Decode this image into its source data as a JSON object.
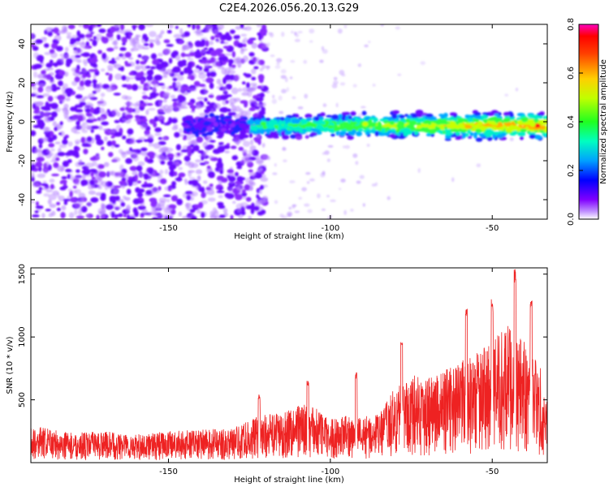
{
  "chart_data": [
    {
      "type": "heatmap",
      "title": "C2E4.2026.056.20.13.G29",
      "xlabel": "Height of straight line (km)",
      "ylabel": "Frequency (Hz)",
      "xlim": [
        -192.5,
        -33
      ],
      "ylim": [
        -50,
        50
      ],
      "x_ticks": [
        -150,
        -100,
        -50
      ],
      "y_ticks": [
        -40,
        -20,
        0,
        20,
        40
      ],
      "colorbar": {
        "label": "Normalized spectral amplitude",
        "range": [
          0.0,
          0.8
        ],
        "ticks": [
          "0.0",
          "0.2",
          "0.4",
          "0.6",
          "0.8"
        ],
        "colors": [
          "#ffffff",
          "#8000ff",
          "#0000ff",
          "#00c8ff",
          "#00ffa0",
          "#40ff00",
          "#ffff00",
          "#ff8000",
          "#ff0000",
          "#ff00c0"
        ]
      },
      "signal_band": {
        "x_start": -145,
        "x_end": -33,
        "center_freq": -2,
        "note": "strong narrow band near 0 Hz from about -145 km to -33 km, brightest near -35 km"
      },
      "noise_region": {
        "x_start": -192.5,
        "x_end": -123,
        "freq_range": [
          -50,
          50
        ]
      }
    },
    {
      "type": "line",
      "xlabel": "Height of straight line (km)",
      "ylabel": "SNR (10 * v/v)",
      "xlim": [
        -192.5,
        -33
      ],
      "ylim": [
        0,
        1550
      ],
      "x_ticks": [
        -150,
        -100,
        -50
      ],
      "y_ticks": [
        500,
        1000,
        1500
      ],
      "color": "#ee2222",
      "series": [
        {
          "name": "SNR",
          "x": [
            -190,
            -180,
            -170,
            -160,
            -150,
            -140,
            -130,
            -122,
            -115,
            -110,
            -105,
            -100,
            -95,
            -90,
            -85,
            -80,
            -75,
            -70,
            -65,
            -60,
            -55,
            -50,
            -45,
            -40,
            -35,
            -33
          ],
          "values": [
            230,
            190,
            200,
            180,
            200,
            210,
            220,
            300,
            320,
            380,
            360,
            280,
            300,
            300,
            310,
            480,
            560,
            560,
            590,
            640,
            700,
            780,
            880,
            780,
            620,
            470
          ]
        }
      ],
      "peaks": [
        {
          "x": -122,
          "y": 540
        },
        {
          "x": -107,
          "y": 660
        },
        {
          "x": -92,
          "y": 720
        },
        {
          "x": -78,
          "y": 1000
        },
        {
          "x": -58,
          "y": 1230
        },
        {
          "x": -50,
          "y": 1300
        },
        {
          "x": -43,
          "y": 1550
        },
        {
          "x": -38,
          "y": 1330
        }
      ]
    }
  ]
}
